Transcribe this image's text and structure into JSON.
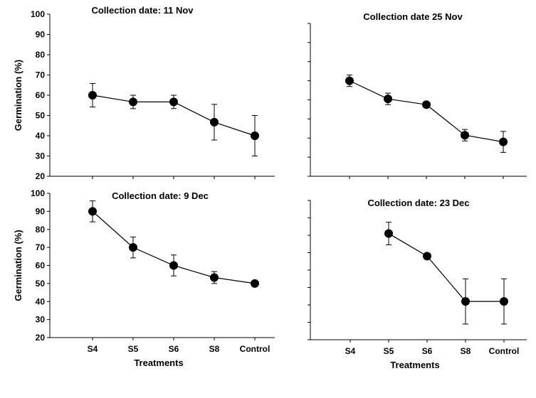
{
  "chart_data": [
    {
      "type": "line",
      "title": "Collection date: 11 Nov",
      "xlabel": "",
      "ylabel": "Germination (%)",
      "categories": [
        "S4",
        "S5",
        "S6",
        "S8",
        "Control"
      ],
      "values": [
        60,
        56.7,
        56.7,
        46.7,
        40
      ],
      "errors": [
        5.8,
        3.3,
        3.3,
        8.8,
        10
      ],
      "ylim": [
        20,
        100
      ],
      "yticks": [
        20,
        30,
        40,
        50,
        60,
        70,
        80,
        90,
        100
      ],
      "show_tick_labels_y": true,
      "show_tick_labels_x": false,
      "grid": false
    },
    {
      "type": "line",
      "title": "Collection date 25 Nov",
      "xlabel": "",
      "ylabel": "",
      "categories": [
        "S4",
        "S5",
        "S6",
        "S8",
        "Control"
      ],
      "values": [
        70,
        60.5,
        57.5,
        41.5,
        38
      ],
      "errors": [
        3,
        3,
        1,
        3,
        5.5
      ],
      "ylim": [
        20,
        100
      ],
      "yticks": [
        20,
        30,
        40,
        50,
        60,
        70,
        80,
        90,
        100
      ],
      "show_tick_labels_y": false,
      "show_tick_labels_x": false,
      "grid": false
    },
    {
      "type": "line",
      "title": "Collection date: 9 Dec",
      "xlabel": "Treatments",
      "ylabel": "Germination (%)",
      "categories": [
        "S4",
        "S5",
        "S6",
        "S8",
        "Control"
      ],
      "values": [
        90,
        70,
        60,
        53.3,
        50
      ],
      "errors": [
        5.8,
        5.8,
        5.8,
        3.3,
        0
      ],
      "ylim": [
        20,
        100
      ],
      "yticks": [
        20,
        30,
        40,
        50,
        60,
        70,
        80,
        90,
        100
      ],
      "show_tick_labels_y": true,
      "show_tick_labels_x": true,
      "grid": false
    },
    {
      "type": "line",
      "title": "Collection date: 23 Dec",
      "xlabel": "Treatments",
      "ylabel": "",
      "categories": [
        "S4",
        "S5",
        "S6",
        "S8",
        "Control"
      ],
      "values": [
        null,
        81,
        68,
        42,
        42
      ],
      "errors": [
        null,
        6.5,
        0.5,
        13,
        13
      ],
      "ylim": [
        20,
        100
      ],
      "yticks": [
        20,
        30,
        40,
        50,
        60,
        70,
        80,
        90,
        100
      ],
      "show_tick_labels_y": false,
      "show_tick_labels_x": true,
      "grid": false
    }
  ]
}
